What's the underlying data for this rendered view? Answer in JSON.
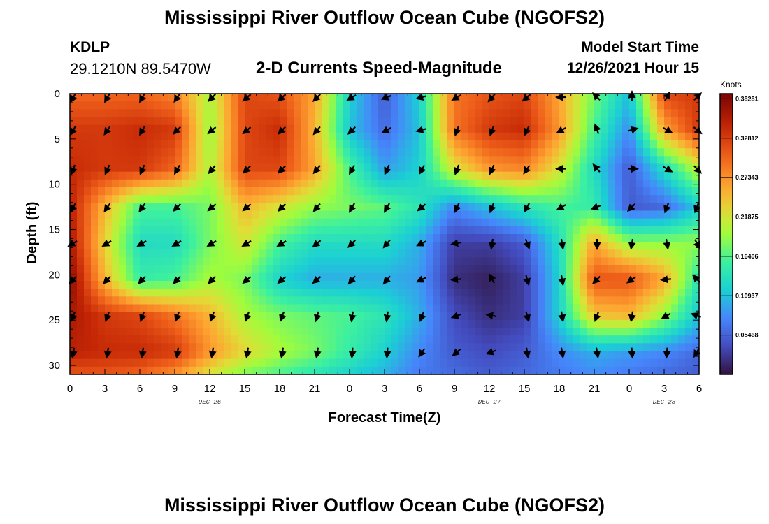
{
  "header": {
    "title": "Mississippi River Outflow Ocean Cube (NGOFS2)",
    "station_id": "KDLP",
    "station_coords": "29.1210N  89.5470W",
    "subtitle": "2-D Currents Speed-Magnitude",
    "model_start_label": "Model Start Time",
    "model_start_value": "12/26/2021 Hour 15"
  },
  "footer": {
    "title": "Mississippi River Outflow Ocean Cube (NGOFS2)"
  },
  "chart_data": {
    "type": "heatmap",
    "xlabel": "Forecast Time(Z)",
    "ylabel": "Depth (ft)",
    "x_tick_labels": [
      "0",
      "3",
      "6",
      "9",
      "12",
      "15",
      "18",
      "21",
      "0",
      "3",
      "6",
      "9",
      "12",
      "15",
      "18",
      "21",
      "0",
      "3",
      "6"
    ],
    "date_labels": [
      {
        "text": "DEC 26",
        "at_tick": 4
      },
      {
        "text": "DEC 27",
        "at_tick": 12
      },
      {
        "text": "DEC 28",
        "at_tick": 17
      }
    ],
    "y_ticks": [
      0,
      5,
      10,
      15,
      20,
      25,
      30
    ],
    "ylim": [
      0,
      31
    ],
    "y_inverted": true,
    "x_hours_range": [
      0,
      54
    ],
    "colorbar": {
      "unit": "Knots",
      "min": 0,
      "max": 0.39,
      "tick_labels": [
        "0.05468",
        "0.10937",
        "0.16406",
        "0.21875",
        "0.27343",
        "0.32812",
        "0.38281"
      ],
      "tick_values": [
        0.05468,
        0.10937,
        0.16406,
        0.21875,
        0.27343,
        0.32812,
        0.38281
      ]
    },
    "depths": [
      0,
      4,
      8.3,
      12.5,
      16.5,
      20.5,
      24.5,
      28.5,
      31
    ],
    "times": [
      0,
      3,
      6,
      9,
      12,
      15,
      18,
      21,
      24,
      27,
      30,
      33,
      36,
      39,
      42,
      45,
      48,
      51,
      54
    ],
    "speed": [
      [
        0.3,
        0.3,
        0.3,
        0.28,
        0.2,
        0.32,
        0.31,
        0.26,
        0.12,
        0.05,
        0.12,
        0.29,
        0.31,
        0.32,
        0.26,
        0.18,
        0.11,
        0.32,
        0.33
      ],
      [
        0.33,
        0.33,
        0.34,
        0.33,
        0.19,
        0.32,
        0.34,
        0.25,
        0.11,
        0.06,
        0.11,
        0.29,
        0.33,
        0.34,
        0.27,
        0.16,
        0.08,
        0.26,
        0.33
      ],
      [
        0.34,
        0.33,
        0.33,
        0.3,
        0.2,
        0.32,
        0.32,
        0.26,
        0.16,
        0.09,
        0.12,
        0.22,
        0.27,
        0.28,
        0.22,
        0.13,
        0.05,
        0.13,
        0.21
      ],
      [
        0.35,
        0.25,
        0.16,
        0.16,
        0.18,
        0.25,
        0.22,
        0.19,
        0.18,
        0.17,
        0.14,
        0.08,
        0.11,
        0.14,
        0.16,
        0.15,
        0.05,
        0.06,
        0.12
      ],
      [
        0.36,
        0.23,
        0.13,
        0.13,
        0.18,
        0.22,
        0.16,
        0.13,
        0.13,
        0.13,
        0.1,
        0.03,
        0.03,
        0.05,
        0.13,
        0.26,
        0.19,
        0.19,
        0.19
      ],
      [
        0.38,
        0.25,
        0.15,
        0.16,
        0.2,
        0.18,
        0.12,
        0.1,
        0.1,
        0.1,
        0.09,
        0.02,
        0.01,
        0.03,
        0.12,
        0.31,
        0.31,
        0.26,
        0.14
      ],
      [
        0.36,
        0.33,
        0.32,
        0.29,
        0.25,
        0.2,
        0.18,
        0.17,
        0.16,
        0.14,
        0.1,
        0.04,
        0.02,
        0.03,
        0.12,
        0.24,
        0.25,
        0.19,
        0.11
      ],
      [
        0.35,
        0.34,
        0.34,
        0.33,
        0.27,
        0.23,
        0.2,
        0.18,
        0.15,
        0.12,
        0.08,
        0.05,
        0.04,
        0.05,
        0.08,
        0.1,
        0.09,
        0.08,
        0.06
      ],
      [
        0.31,
        0.31,
        0.3,
        0.27,
        0.22,
        0.18,
        0.16,
        0.14,
        0.12,
        0.1,
        0.07,
        0.06,
        0.05,
        0.06,
        0.07,
        0.08,
        0.07,
        0.06,
        0.05
      ]
    ],
    "arrow_depths": [
      0,
      4,
      8.3,
      12.5,
      16.5,
      20.5,
      24.5,
      28.5
    ],
    "arrow_times": [
      0,
      3,
      6,
      9,
      12,
      15,
      18,
      21,
      24,
      27,
      30,
      33,
      36,
      39,
      42,
      45,
      48,
      51,
      54
    ],
    "arrow_direction_deg": [
      [
        120,
        120,
        120,
        125,
        135,
        140,
        140,
        135,
        150,
        160,
        165,
        150,
        130,
        140,
        180,
        225,
        270,
        300,
        315
      ],
      [
        120,
        125,
        120,
        135,
        140,
        140,
        135,
        130,
        135,
        150,
        165,
        110,
        110,
        115,
        150,
        250,
        345,
        30,
        40
      ],
      [
        110,
        115,
        115,
        120,
        130,
        135,
        135,
        130,
        120,
        115,
        120,
        110,
        115,
        125,
        180,
        230,
        0,
        30,
        45
      ],
      [
        120,
        125,
        125,
        135,
        140,
        140,
        135,
        130,
        120,
        120,
        140,
        115,
        110,
        120,
        150,
        160,
        135,
        110,
        110
      ],
      [
        150,
        150,
        150,
        150,
        150,
        150,
        150,
        140,
        135,
        130,
        155,
        170,
        100,
        70,
        80,
        90,
        100,
        80,
        60
      ],
      [
        135,
        135,
        135,
        135,
        135,
        140,
        140,
        140,
        130,
        130,
        155,
        175,
        240,
        75,
        80,
        135,
        145,
        175,
        225
      ],
      [
        110,
        110,
        110,
        110,
        110,
        110,
        110,
        105,
        100,
        100,
        110,
        160,
        190,
        75,
        80,
        110,
        100,
        150,
        200
      ],
      [
        100,
        100,
        100,
        100,
        100,
        100,
        100,
        100,
        95,
        95,
        125,
        140,
        160,
        80,
        80,
        80,
        85,
        95,
        120
      ]
    ]
  }
}
